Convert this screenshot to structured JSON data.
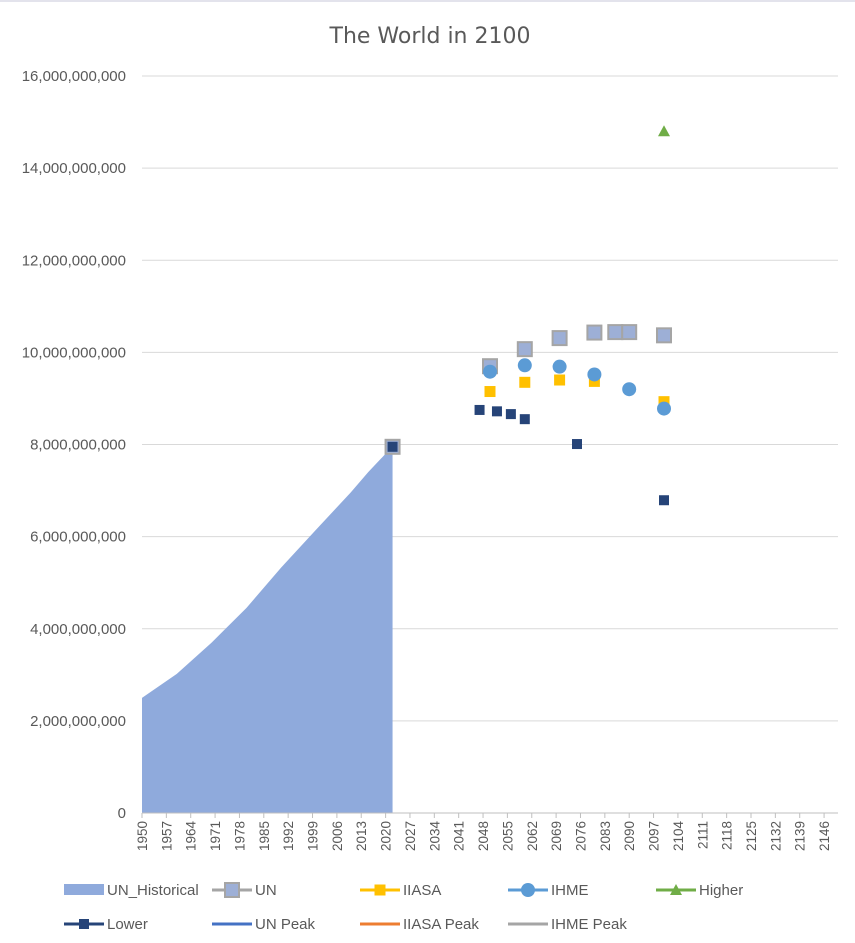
{
  "chart_data": {
    "type": "area+scatter",
    "title": "The World in 2100",
    "xlabel": "",
    "ylabel": "",
    "xlim": [
      1950,
      2150
    ],
    "ylim": [
      0,
      16000000000
    ],
    "yticks": [
      0,
      2000000000,
      4000000000,
      6000000000,
      8000000000,
      10000000000,
      12000000000,
      14000000000,
      16000000000
    ],
    "ytick_labels": [
      "0",
      "2,000,000,000",
      "4,000,000,000",
      "6,000,000,000",
      "8,000,000,000",
      "10,000,000,000",
      "12,000,000,000",
      "14,000,000,000",
      "16,000,000,000"
    ],
    "xtick_labels": [
      "1950",
      "1957",
      "1964",
      "1971",
      "1978",
      "1985",
      "1992",
      "1999",
      "2006",
      "2013",
      "2020",
      "2027",
      "2034",
      "2041",
      "2048",
      "2055",
      "2062",
      "2069",
      "2076",
      "2083",
      "2090",
      "2097",
      "2104",
      "2111",
      "2118",
      "2125",
      "2132",
      "2139",
      "2146"
    ],
    "grid": "horizontal",
    "legend_position": "bottom",
    "series": [
      {
        "name": "UN_Historical",
        "kind": "area",
        "color": "#8faadc",
        "x": [
          1950,
          1960,
          1970,
          1980,
          1990,
          2000,
          2010,
          2015,
          2020,
          2022
        ],
        "y": [
          2500000000,
          3020000000,
          3700000000,
          4450000000,
          5330000000,
          6150000000,
          6960000000,
          7400000000,
          7800000000,
          7950000000
        ]
      },
      {
        "name": "UN",
        "kind": "marker",
        "marker": "square",
        "color": "#a5a5a5",
        "fill": "#9dafd6",
        "x": [
          2022,
          2050,
          2060,
          2070,
          2080,
          2086,
          2090,
          2100
        ],
        "y": [
          7950000000,
          9700000000,
          10070000000,
          10310000000,
          10430000000,
          10440000000,
          10440000000,
          10370000000
        ]
      },
      {
        "name": "IIASA",
        "kind": "marker",
        "marker": "square",
        "color": "#ffc000",
        "x": [
          2050,
          2060,
          2070,
          2080,
          2100
        ],
        "y": [
          9150000000,
          9350000000,
          9400000000,
          9370000000,
          8930000000
        ]
      },
      {
        "name": "IHME",
        "kind": "marker",
        "marker": "circle",
        "color": "#5b9bd5",
        "x": [
          2050,
          2060,
          2070,
          2080,
          2090,
          2100
        ],
        "y": [
          9580000000,
          9720000000,
          9690000000,
          9520000000,
          9200000000,
          8780000000
        ]
      },
      {
        "name": "Higher",
        "kind": "marker",
        "marker": "triangle",
        "color": "#70ad47",
        "x": [
          2100
        ],
        "y": [
          14800000000
        ]
      },
      {
        "name": "Lower",
        "kind": "marker",
        "marker": "square",
        "color": "#264478",
        "x": [
          2022,
          2047,
          2052,
          2056,
          2060,
          2075,
          2100
        ],
        "y": [
          7950000000,
          8750000000,
          8720000000,
          8660000000,
          8550000000,
          8010000000,
          6790000000
        ]
      },
      {
        "name": "UN Peak",
        "kind": "legend-only",
        "color": "#4472c4",
        "x": [],
        "y": []
      },
      {
        "name": "IIASA Peak",
        "kind": "legend-only",
        "color": "#ed7d31",
        "x": [],
        "y": []
      },
      {
        "name": "IHME Peak",
        "kind": "legend-only",
        "color": "#a5a5a5",
        "x": [],
        "y": []
      }
    ]
  }
}
